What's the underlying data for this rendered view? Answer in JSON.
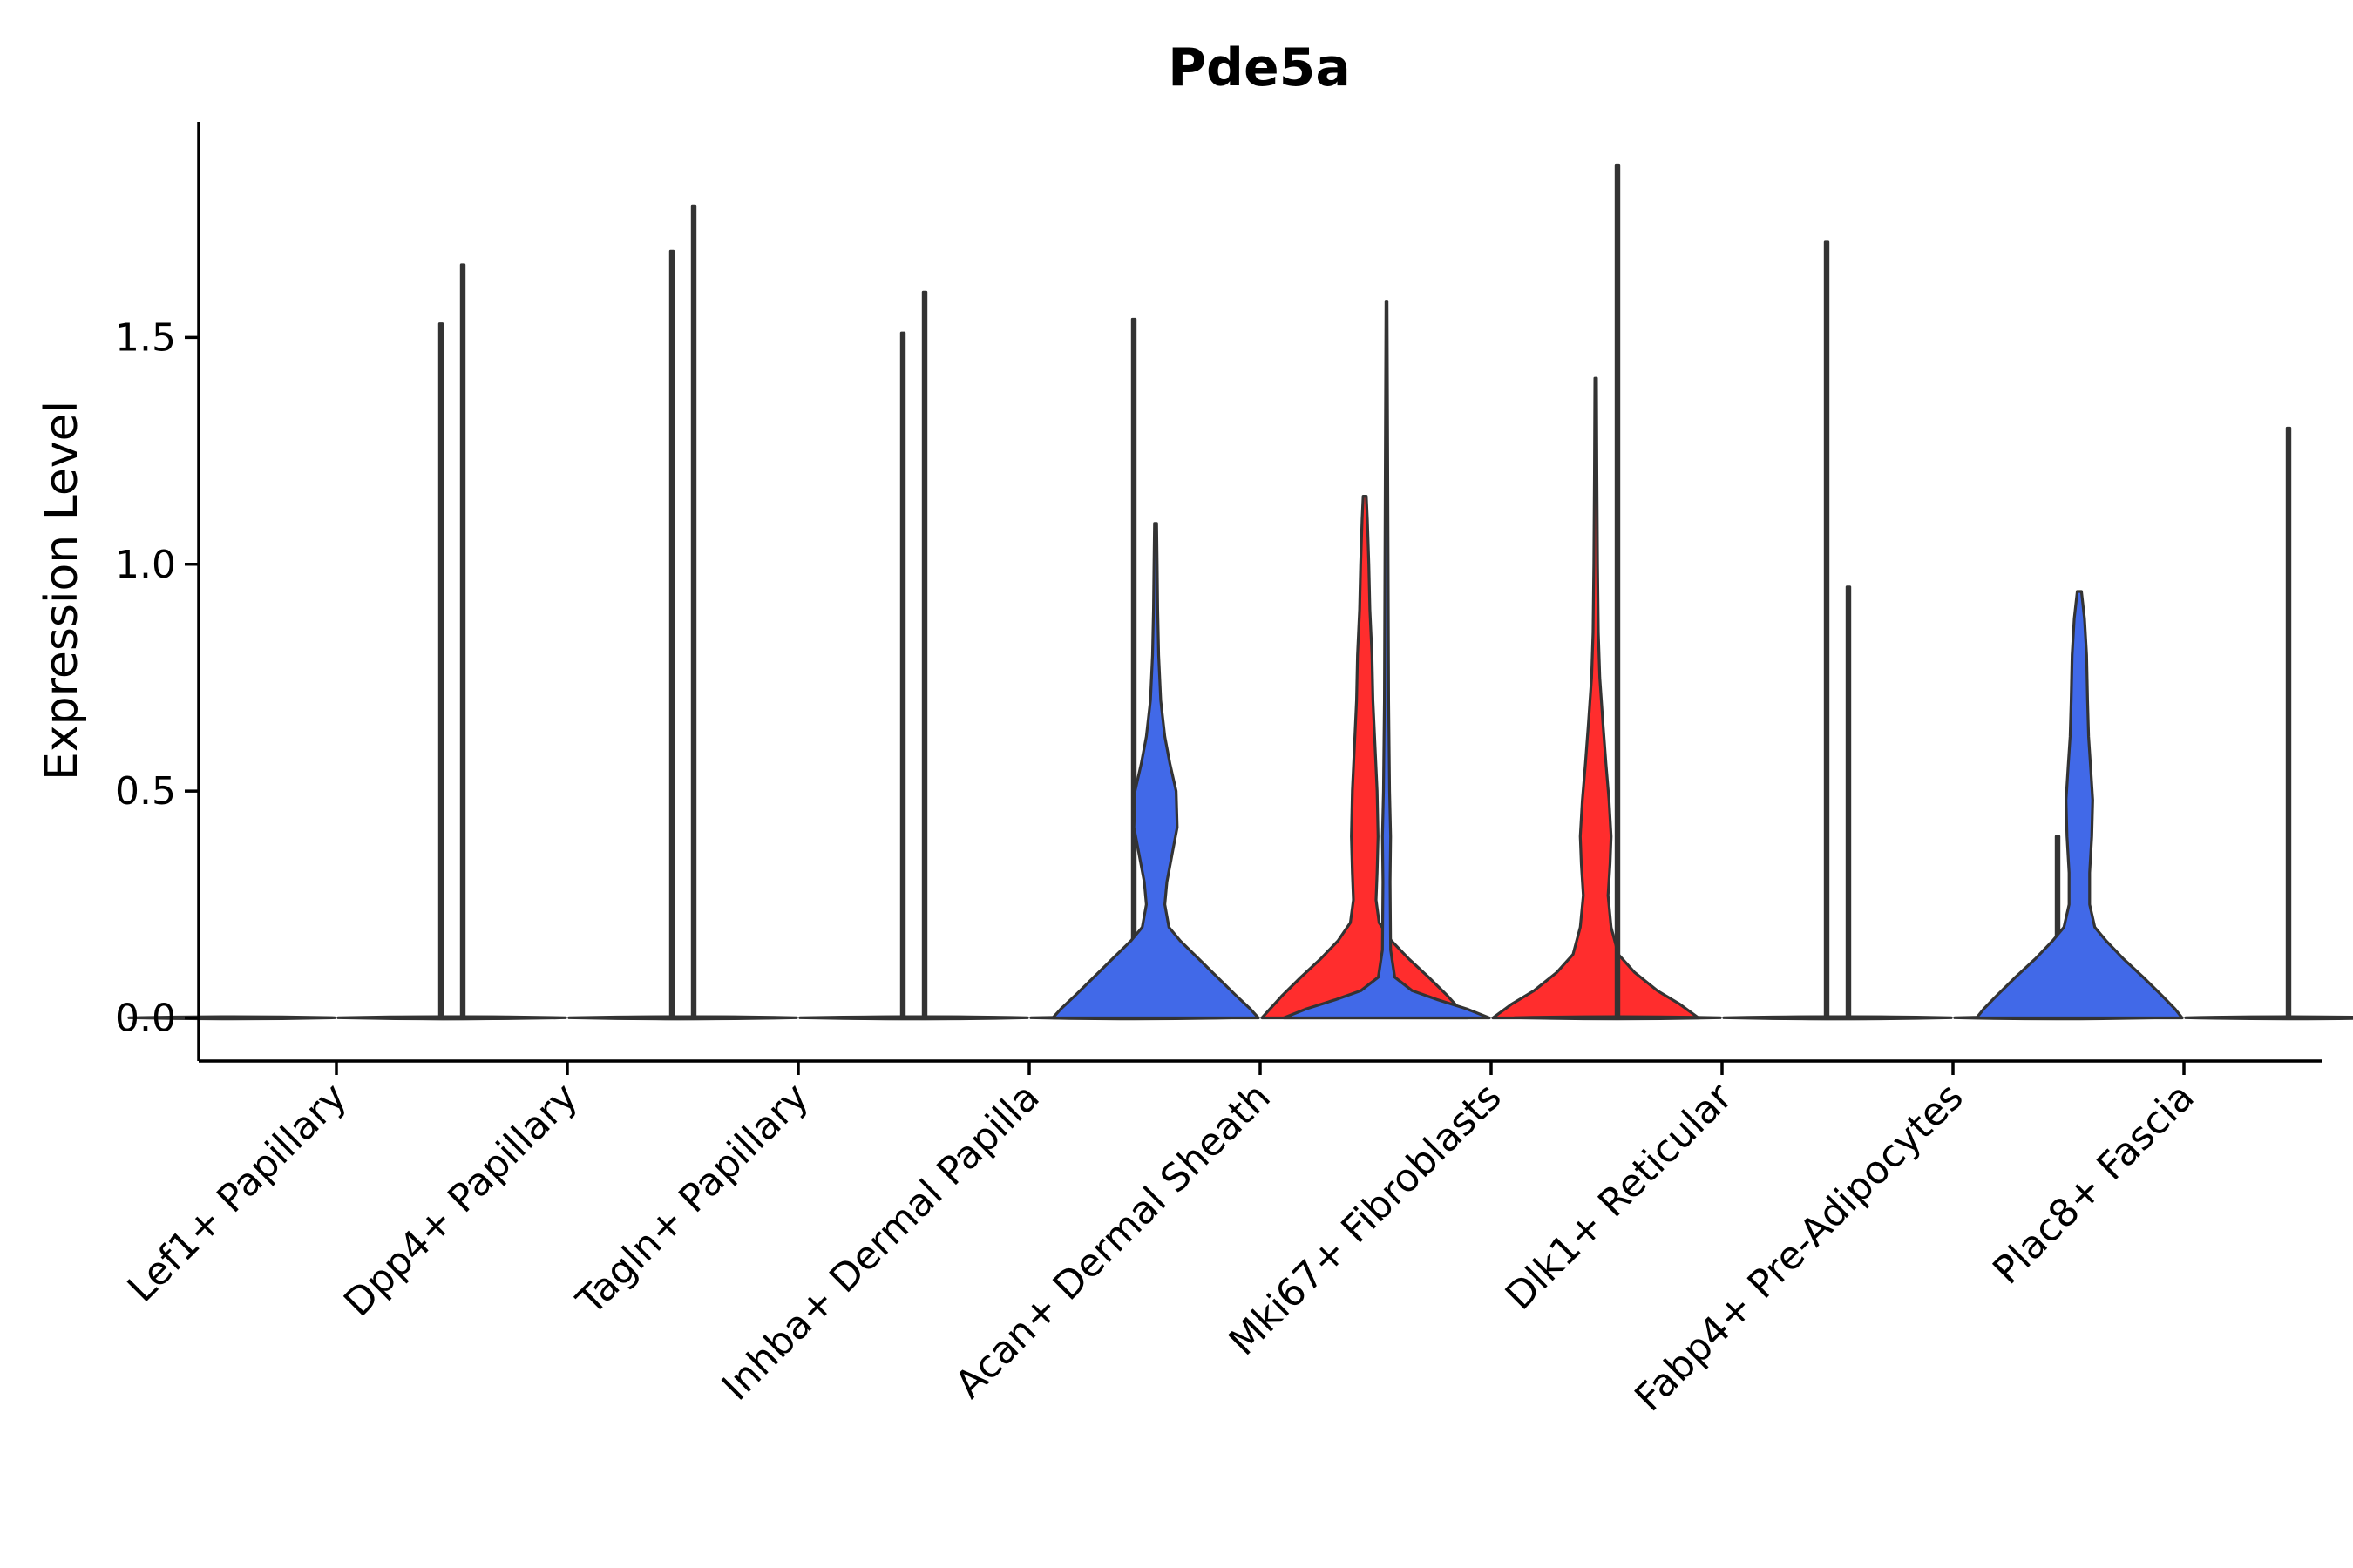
{
  "chart_data": {
    "type": "violin",
    "title": "Pde5a",
    "xlabel": "",
    "ylabel": "Expression Level",
    "ylim": [
      -0.095,
      1.975
    ],
    "yticks": [
      {
        "value": 0.0,
        "label": "0.0"
      },
      {
        "value": 0.5,
        "label": "0.5"
      },
      {
        "value": 1.0,
        "label": "1.0"
      },
      {
        "value": 1.5,
        "label": "1.5"
      }
    ],
    "grid": false,
    "legend": "none",
    "colors": {
      "group_a": "#4169E8",
      "group_b": "#FF2D2D",
      "outline": "#333333"
    },
    "categories": [
      "Lef1+ Papillary",
      "Dpp4+ Papillary",
      "Tagln+ Papillary",
      "Inhba+ Dermal Papilla",
      "Acan+ Dermal Sheath",
      "Mki67+ Fibroblasts",
      "Dlk1+ Reticular",
      "Fabp4+ Pre-Adipocytes",
      "Plac8+ Fascia"
    ],
    "series": [
      {
        "name": "group_a",
        "max_values": [
          0.0,
          1.66,
          1.79,
          1.6,
          1.09,
          1.58,
          1.88,
          0.95,
          0.94
        ]
      },
      {
        "name": "group_b",
        "max_values": [
          1.53,
          1.69,
          1.51,
          1.54,
          1.15,
          1.41,
          1.71,
          0.4,
          1.3
        ]
      }
    ],
    "filled_violins": [
      {
        "category": "Acan+ Dermal Sheath",
        "group": "group_a",
        "max": 1.09,
        "density": [
          [
            0.0,
            1.0
          ],
          [
            0.02,
            0.92
          ],
          [
            0.05,
            0.78
          ],
          [
            0.09,
            0.6
          ],
          [
            0.13,
            0.42
          ],
          [
            0.17,
            0.24
          ],
          [
            0.2,
            0.13
          ],
          [
            0.25,
            0.09
          ],
          [
            0.3,
            0.11
          ],
          [
            0.36,
            0.16
          ],
          [
            0.42,
            0.21
          ],
          [
            0.5,
            0.2
          ],
          [
            0.56,
            0.14
          ],
          [
            0.62,
            0.09
          ],
          [
            0.7,
            0.05
          ],
          [
            0.8,
            0.03
          ],
          [
            0.9,
            0.02
          ],
          [
            1.0,
            0.015
          ],
          [
            1.09,
            0.01
          ]
        ]
      },
      {
        "category": "Acan+ Dermal Sheath",
        "group": "group_b",
        "max": 1.15,
        "density": [
          [
            0.0,
            1.0
          ],
          [
            0.02,
            0.92
          ],
          [
            0.05,
            0.8
          ],
          [
            0.09,
            0.62
          ],
          [
            0.13,
            0.43
          ],
          [
            0.17,
            0.26
          ],
          [
            0.21,
            0.14
          ],
          [
            0.26,
            0.11
          ],
          [
            0.32,
            0.12
          ],
          [
            0.4,
            0.13
          ],
          [
            0.5,
            0.12
          ],
          [
            0.6,
            0.1
          ],
          [
            0.7,
            0.08
          ],
          [
            0.8,
            0.07
          ],
          [
            0.9,
            0.05
          ],
          [
            1.0,
            0.04
          ],
          [
            1.1,
            0.025
          ],
          [
            1.15,
            0.015
          ]
        ]
      },
      {
        "category": "Mki67+ Fibroblasts",
        "group": "group_a",
        "max": 1.58,
        "density": [
          [
            0.0,
            1.0
          ],
          [
            0.02,
            0.78
          ],
          [
            0.04,
            0.5
          ],
          [
            0.06,
            0.25
          ],
          [
            0.09,
            0.08
          ],
          [
            0.15,
            0.04
          ],
          [
            0.3,
            0.035
          ],
          [
            0.4,
            0.04
          ],
          [
            0.5,
            0.03
          ],
          [
            0.7,
            0.02
          ],
          [
            1.0,
            0.015
          ],
          [
            1.3,
            0.01
          ],
          [
            1.58,
            0.005
          ]
        ]
      },
      {
        "category": "Mki67+ Fibroblasts",
        "group": "group_b",
        "max": 1.41,
        "density": [
          [
            0.0,
            1.0
          ],
          [
            0.03,
            0.82
          ],
          [
            0.06,
            0.6
          ],
          [
            0.1,
            0.38
          ],
          [
            0.14,
            0.22
          ],
          [
            0.2,
            0.15
          ],
          [
            0.27,
            0.12
          ],
          [
            0.34,
            0.14
          ],
          [
            0.4,
            0.15
          ],
          [
            0.48,
            0.13
          ],
          [
            0.56,
            0.1
          ],
          [
            0.65,
            0.07
          ],
          [
            0.75,
            0.04
          ],
          [
            0.85,
            0.025
          ],
          [
            1.0,
            0.018
          ],
          [
            1.2,
            0.012
          ],
          [
            1.41,
            0.008
          ]
        ]
      },
      {
        "category": "Plac8+ Fascia",
        "group": "group_a",
        "max": 0.94,
        "density": [
          [
            0.0,
            1.0
          ],
          [
            0.02,
            0.93
          ],
          [
            0.05,
            0.8
          ],
          [
            0.09,
            0.62
          ],
          [
            0.13,
            0.43
          ],
          [
            0.17,
            0.26
          ],
          [
            0.2,
            0.15
          ],
          [
            0.25,
            0.1
          ],
          [
            0.32,
            0.1
          ],
          [
            0.4,
            0.12
          ],
          [
            0.48,
            0.13
          ],
          [
            0.55,
            0.11
          ],
          [
            0.62,
            0.09
          ],
          [
            0.7,
            0.08
          ],
          [
            0.8,
            0.07
          ],
          [
            0.88,
            0.05
          ],
          [
            0.94,
            0.02
          ]
        ]
      }
    ]
  }
}
